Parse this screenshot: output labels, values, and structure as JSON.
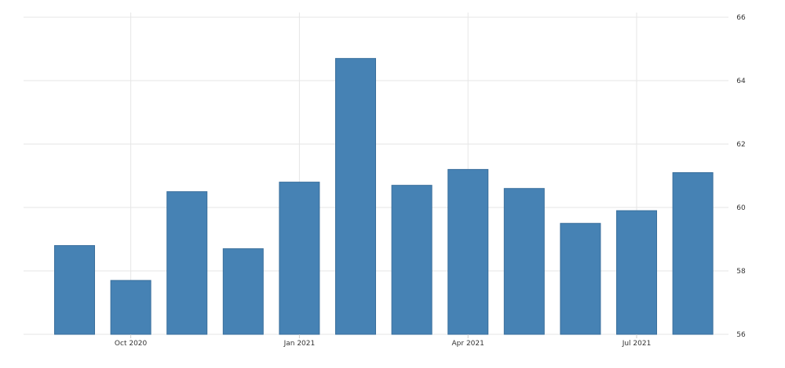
{
  "chart_data": {
    "type": "bar",
    "categories": [
      "Sep 2020",
      "Oct 2020",
      "Nov 2020",
      "Dec 2020",
      "Jan 2021",
      "Feb 2021",
      "Mar 2021",
      "Apr 2021",
      "May 2021",
      "Jun 2021",
      "Jul 2021",
      "Aug 2021"
    ],
    "values": [
      58.8,
      57.7,
      60.5,
      58.7,
      60.8,
      64.7,
      60.7,
      61.2,
      60.6,
      59.5,
      59.9,
      61.1
    ],
    "x_tick_labels": [
      "Oct 2020",
      "Jan 2021",
      "Apr 2021",
      "Jul 2021"
    ],
    "y_ticks": [
      56,
      58,
      60,
      62,
      64,
      66
    ],
    "ylim": [
      56,
      66
    ],
    "title": "",
    "xlabel": "",
    "ylabel": "",
    "y_axis_side": "right",
    "grid": true,
    "legend": "none",
    "colors": {
      "bar_fill": "#4682b4",
      "bar_stroke": "#3a6f9c",
      "grid": "#e6e6e6",
      "text": "#333333"
    }
  }
}
